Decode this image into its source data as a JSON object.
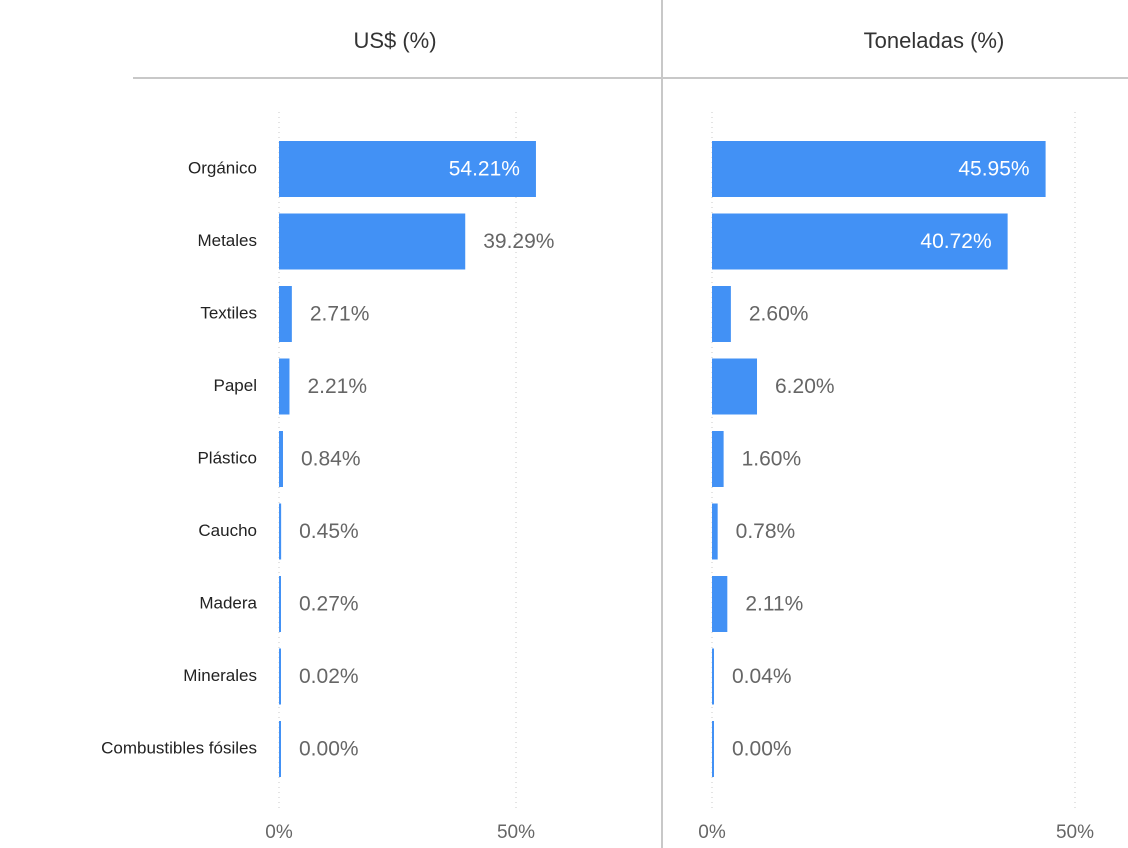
{
  "chart_data": [
    {
      "type": "bar",
      "orientation": "horizontal",
      "title": "US$ (%)",
      "categories": [
        "Orgánico",
        "Metales",
        "Textiles",
        "Papel",
        "Plástico",
        "Caucho",
        "Madera",
        "Minerales",
        "Combustibles fósiles"
      ],
      "values": [
        54.21,
        39.29,
        2.71,
        2.21,
        0.84,
        0.45,
        0.27,
        0.02,
        0
      ],
      "value_labels": [
        "54.21%",
        "39.29%",
        "2.71%",
        "2.21%",
        "0.84%",
        "0.45%",
        "0.27%",
        "0.02%",
        "0.00%"
      ],
      "color": "#4291f5",
      "xlim": [
        0,
        60
      ],
      "xticks": [
        {
          "value": 0,
          "label": "0%"
        },
        {
          "value": 50,
          "label": "50%"
        }
      ],
      "grid": true
    },
    {
      "type": "bar",
      "orientation": "horizontal",
      "title": "Toneladas (%)",
      "values": [
        45.95,
        40.72,
        2.6,
        6.2,
        1.6,
        0.78,
        2.11,
        0.04,
        0
      ],
      "value_labels": [
        "45.95%",
        "40.72%",
        "2.60%",
        "6.20%",
        "1.60%",
        "0.78%",
        "2.11%",
        "0.04%",
        "0.00%"
      ],
      "color": "#4291f5",
      "xlim": [
        0,
        55
      ],
      "xticks": [
        {
          "value": 0,
          "label": "0%"
        },
        {
          "value": 50,
          "label": "50%"
        }
      ],
      "grid": true
    }
  ]
}
